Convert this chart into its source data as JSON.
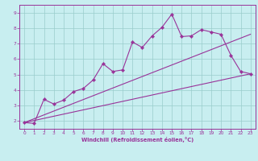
{
  "xlabel": "Windchill (Refroidissement éolien,°C)",
  "xlim": [
    -0.5,
    23.5
  ],
  "ylim": [
    1.5,
    9.5
  ],
  "xticks": [
    0,
    1,
    2,
    3,
    4,
    5,
    6,
    7,
    8,
    9,
    10,
    11,
    12,
    13,
    14,
    15,
    16,
    17,
    18,
    19,
    20,
    21,
    22,
    23
  ],
  "yticks": [
    2,
    3,
    4,
    5,
    6,
    7,
    8,
    9
  ],
  "bg_color": "#c8eef0",
  "line_color": "#993399",
  "grid_color": "#99cccc",
  "line1_x": [
    0,
    1,
    2,
    3,
    4,
    5,
    6,
    7,
    8,
    9,
    10,
    11,
    12,
    13,
    14,
    15,
    16,
    17,
    18,
    19,
    20,
    21,
    22,
    23
  ],
  "line1_y": [
    1.9,
    1.85,
    3.4,
    3.1,
    3.35,
    3.9,
    4.1,
    4.65,
    5.7,
    5.2,
    5.3,
    7.1,
    6.75,
    7.5,
    8.05,
    8.9,
    7.45,
    7.5,
    7.9,
    7.75,
    7.6,
    6.25,
    5.2,
    5.05
  ],
  "line2_x": [
    0,
    23
  ],
  "line2_y": [
    1.9,
    5.05
  ],
  "line3_x": [
    0,
    23
  ],
  "line3_y": [
    1.9,
    7.6
  ]
}
